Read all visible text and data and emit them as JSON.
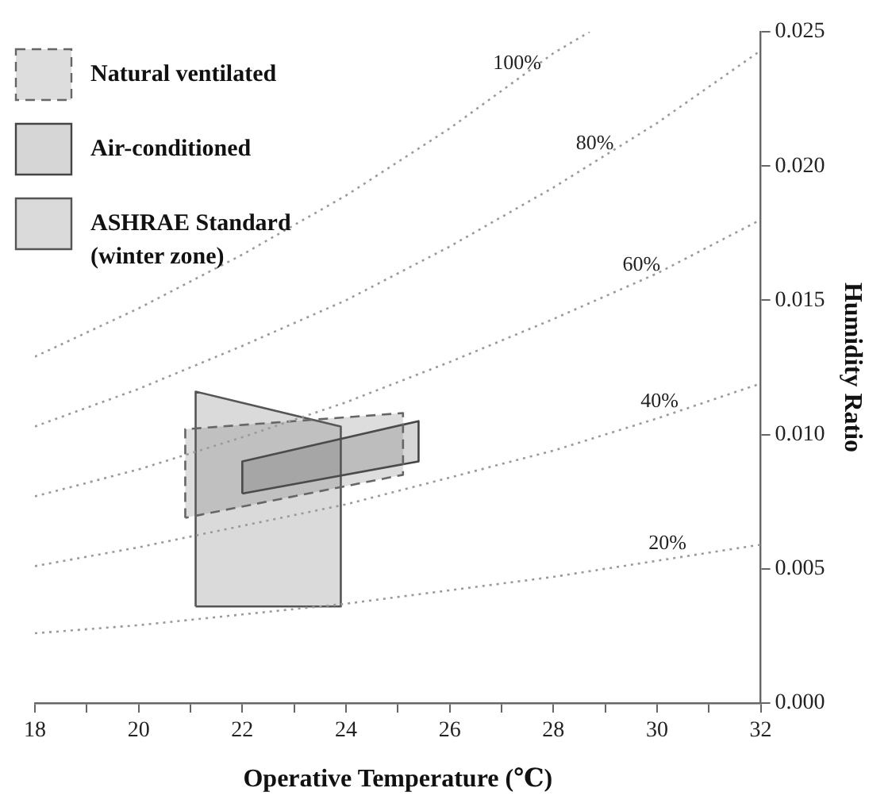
{
  "chart_data": {
    "type": "line",
    "xlabel": "Operative Temperature (℃)",
    "ylabel": "Humidity Ratio",
    "xlim": [
      18,
      32
    ],
    "ylim": [
      0,
      0.025
    ],
    "xticks": [
      18,
      {
        "value": 19,
        "label": null
      },
      20,
      {
        "value": 21,
        "label": null
      },
      22,
      {
        "value": 23,
        "label": null
      },
      24,
      {
        "value": 25,
        "label": null
      },
      26,
      {
        "value": 27,
        "label": null
      },
      28,
      {
        "value": 29,
        "label": null
      },
      30,
      {
        "value": 31,
        "label": null
      },
      32
    ],
    "yticks": [
      {
        "value": 0,
        "label": "0.000"
      },
      {
        "value": 0.005,
        "label": "0.005"
      },
      {
        "value": 0.01,
        "label": "0.010"
      },
      {
        "value": 0.015,
        "label": "0.015"
      },
      {
        "value": 0.02,
        "label": "0.020"
      },
      {
        "value": 0.025,
        "label": "0.025"
      }
    ],
    "grid": false,
    "legend": "top left",
    "marker": "none",
    "series": [
      {
        "type": "line",
        "line_style": "dotted",
        "color": "#9a9a9a",
        "x": [
          18,
          20,
          22,
          24,
          26,
          28,
          28.7
        ],
        "values": [
          0.0129,
          0.0147,
          0.0167,
          0.0189,
          0.0214,
          0.0242,
          0.025
        ]
      },
      {
        "type": "line",
        "line_style": "dotted",
        "color": "#9a9a9a",
        "x": [
          18,
          20,
          22,
          24,
          26,
          28,
          30,
          32
        ],
        "values": [
          0.0103,
          0.0117,
          0.0133,
          0.015,
          0.017,
          0.0192,
          0.0216,
          0.0243
        ]
      },
      {
        "type": "line",
        "line_style": "dotted",
        "color": "#9a9a9a",
        "x": [
          18,
          20,
          22,
          24,
          26,
          28,
          30,
          32
        ],
        "values": [
          0.0077,
          0.0087,
          0.0099,
          0.0112,
          0.0127,
          0.0143,
          0.016,
          0.018
        ]
      },
      {
        "type": "line",
        "line_style": "dotted",
        "color": "#9a9a9a",
        "x": [
          18,
          20,
          22,
          24,
          26,
          28,
          30,
          32
        ],
        "values": [
          0.0051,
          0.0058,
          0.0066,
          0.0074,
          0.0084,
          0.0094,
          0.0106,
          0.0119
        ]
      },
      {
        "type": "line",
        "line_style": "dotted",
        "color": "#9a9a9a",
        "x": [
          18,
          20,
          22,
          24,
          26,
          28,
          30,
          32
        ],
        "values": [
          0.0026,
          0.0029,
          0.0033,
          0.0037,
          0.0042,
          0.0047,
          0.0053,
          0.0059
        ]
      },
      {
        "name": "Natural ventilated",
        "type": "area",
        "line_style": "dashed",
        "color": "#666666",
        "x": [
          20.9,
          20.9,
          25.1,
          25.1,
          20.9
        ],
        "values": [
          0.0069,
          0.0102,
          0.0108,
          0.0085,
          0.0069
        ]
      },
      {
        "name": "Air-conditioned",
        "type": "area",
        "line_style": "solid",
        "color": "#444444",
        "x": [
          22,
          22,
          25.4,
          25.4,
          22
        ],
        "values": [
          0.0078,
          0.009,
          0.0105,
          0.009,
          0.0078
        ]
      },
      {
        "name": "ASHRAE Standard (winter zone)",
        "type": "area",
        "line_style": "solid",
        "color": "#555555",
        "x": [
          21.1,
          21.1,
          23.9,
          23.9,
          21.1
        ],
        "values": [
          0.0036,
          0.0116,
          0.0103,
          0.0036,
          0.0036
        ]
      }
    ],
    "annotations": [
      {
        "text": "100%",
        "x": 27.3,
        "y": 0.0232
      },
      {
        "text": "80%",
        "x": 28.8,
        "y": 0.0202
      },
      {
        "text": "60%",
        "x": 29.7,
        "y": 0.0157
      },
      {
        "text": "40%",
        "x": 30.05,
        "y": 0.0106
      },
      {
        "text": "20%",
        "x": 30.2,
        "y": 0.0053
      }
    ]
  }
}
